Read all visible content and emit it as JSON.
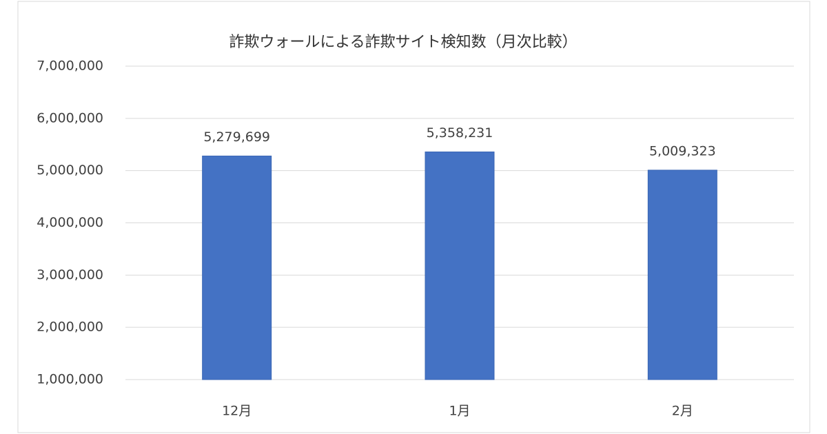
{
  "chart_data": {
    "type": "bar",
    "title": "詐欺ウォールによる詐欺サイト検知数（月次比較）",
    "categories": [
      "12月",
      "1月",
      "2月"
    ],
    "values": [
      5279699,
      5358231,
      5009323
    ],
    "value_labels": [
      "5,279,699",
      "5,358,231",
      "5,009,323"
    ],
    "color": "#4472c4",
    "ylim": [
      1000000,
      7000000
    ],
    "yticks": [
      {
        "value": 1000000,
        "label": "1,000,000"
      },
      {
        "value": 2000000,
        "label": "2,000,000"
      },
      {
        "value": 3000000,
        "label": "3,000,000"
      },
      {
        "value": 4000000,
        "label": "4,000,000"
      },
      {
        "value": 5000000,
        "label": "5,000,000"
      },
      {
        "value": 6000000,
        "label": "6,000,000"
      },
      {
        "value": 7000000,
        "label": "7,000,000"
      }
    ],
    "grid": true
  }
}
